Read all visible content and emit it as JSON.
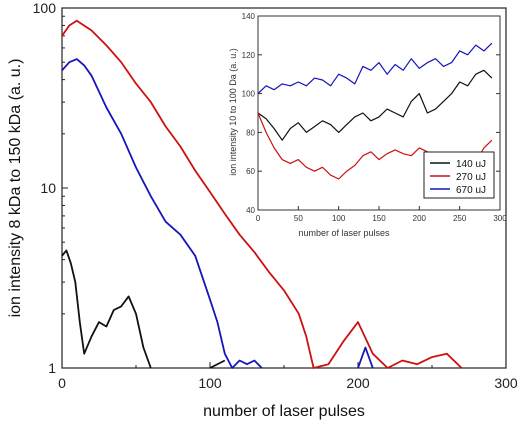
{
  "chart_data": [
    {
      "type": "line",
      "title": "",
      "xlabel": "number of laser pulses",
      "ylabel": "ion intensity 8 kDa to 150 kDa (a. u.)",
      "xlim": [
        0,
        300
      ],
      "ylim": [
        1,
        100
      ],
      "yscale": "log",
      "x_ticks": [
        "0",
        "100",
        "200",
        "300"
      ],
      "y_ticks": [
        "1",
        "10",
        "100"
      ],
      "grid": false,
      "series": [
        {
          "color": "#cc1111",
          "x": [
            0,
            5,
            10,
            20,
            30,
            40,
            50,
            60,
            70,
            80,
            90,
            100,
            110,
            120,
            130,
            140,
            150,
            160,
            165,
            170,
            180,
            190,
            200,
            210,
            220,
            230,
            240,
            250,
            260,
            270
          ],
          "y": [
            70,
            80,
            85,
            75,
            62,
            50,
            38,
            30,
            22,
            17,
            12.5,
            9.5,
            7.2,
            5.5,
            4.4,
            3.4,
            2.7,
            2.0,
            1.5,
            1.0,
            1.05,
            1.4,
            1.8,
            1.2,
            1.0,
            1.1,
            1.05,
            1.15,
            1.2,
            1.0
          ]
        },
        {
          "color": "#1515bb",
          "x": [
            0,
            5,
            10,
            15,
            20,
            30,
            40,
            50,
            60,
            70,
            80,
            90,
            100,
            105,
            110,
            115,
            120,
            125,
            130,
            135,
            200,
            205,
            210
          ],
          "y": [
            45,
            50,
            52,
            48,
            42,
            28,
            20,
            13,
            9,
            6.5,
            5.5,
            4.2,
            2.4,
            1.8,
            1.2,
            1.0,
            1.1,
            1.05,
            1.1,
            1.0,
            1.0,
            1.3,
            1.0
          ]
        },
        {
          "color": "#111111",
          "x": [
            0,
            3,
            6,
            9,
            12,
            15,
            20,
            25,
            30,
            35,
            40,
            45,
            50,
            55,
            60,
            100,
            110
          ],
          "y": [
            4.2,
            4.5,
            3.8,
            3.0,
            1.8,
            1.2,
            1.5,
            1.8,
            1.7,
            2.1,
            2.2,
            2.5,
            2.0,
            1.3,
            1.0,
            1.0,
            1.1
          ]
        }
      ]
    },
    {
      "type": "line",
      "title": "",
      "xlabel": "number of laser pulses",
      "ylabel": "ion intensity 10 to 100 Da (a. u.)",
      "xlim": [
        0,
        300
      ],
      "ylim": [
        40,
        140
      ],
      "x_ticks": [
        "0",
        "50",
        "100",
        "150",
        "200",
        "250",
        "300"
      ],
      "y_ticks": [
        "40",
        "60",
        "80",
        "100",
        "120",
        "140"
      ],
      "grid": false,
      "legend": "bottom-right",
      "series": [
        {
          "name": "140 uJ",
          "color": "#111111",
          "x": [
            0,
            10,
            20,
            30,
            40,
            50,
            60,
            70,
            80,
            90,
            100,
            110,
            120,
            130,
            140,
            150,
            160,
            170,
            180,
            190,
            200,
            210,
            220,
            230,
            240,
            250,
            260,
            270,
            280,
            290
          ],
          "y": [
            90,
            87,
            82,
            76,
            82,
            85,
            80,
            83,
            86,
            84,
            80,
            84,
            88,
            90,
            86,
            88,
            92,
            90,
            88,
            96,
            100,
            90,
            92,
            96,
            100,
            106,
            104,
            110,
            112,
            108
          ]
        },
        {
          "name": "270 uJ",
          "color": "#cc1111",
          "x": [
            0,
            10,
            20,
            30,
            40,
            50,
            60,
            70,
            80,
            90,
            100,
            110,
            120,
            130,
            140,
            150,
            160,
            170,
            180,
            190,
            200,
            210,
            220,
            230,
            240,
            250,
            260,
            270,
            280,
            290
          ],
          "y": [
            90,
            80,
            72,
            66,
            64,
            66,
            62,
            60,
            62,
            58,
            56,
            60,
            63,
            68,
            70,
            66,
            69,
            71,
            69,
            68,
            72,
            70,
            69,
            68,
            66,
            63,
            64,
            65,
            72,
            76
          ]
        },
        {
          "name": "670 uJ",
          "color": "#1515bb",
          "x": [
            0,
            10,
            20,
            30,
            40,
            50,
            60,
            70,
            80,
            90,
            100,
            110,
            120,
            130,
            140,
            150,
            160,
            170,
            180,
            190,
            200,
            210,
            220,
            230,
            240,
            250,
            260,
            270,
            280,
            290
          ],
          "y": [
            100,
            104,
            102,
            105,
            104,
            106,
            104,
            108,
            107,
            104,
            110,
            108,
            105,
            114,
            112,
            116,
            110,
            115,
            112,
            118,
            113,
            116,
            118,
            114,
            116,
            122,
            120,
            125,
            122,
            126
          ]
        }
      ]
    }
  ]
}
